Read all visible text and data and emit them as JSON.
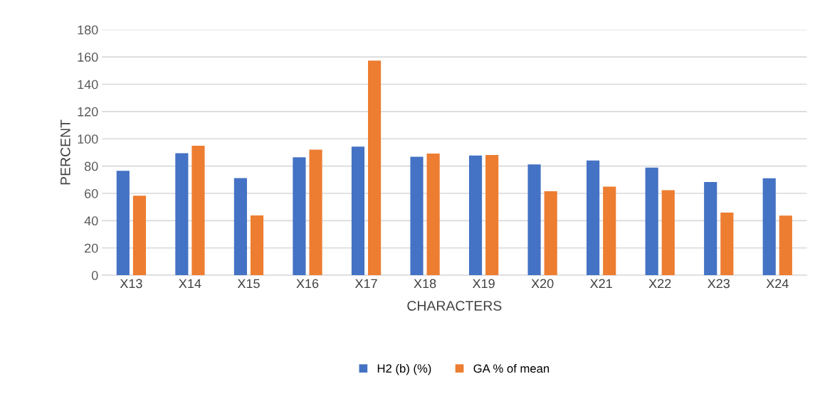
{
  "chart_data": {
    "type": "bar",
    "xlabel": "CHARACTERS",
    "ylabel": "PERCENT",
    "categories": [
      "X13",
      "X14",
      "X15",
      "X16",
      "X17",
      "X18",
      "X19",
      "X20",
      "X21",
      "X22",
      "X23",
      "X24"
    ],
    "series": [
      {
        "name": "H2 (b) (%)",
        "color": "#4472c4",
        "values": [
          76.6,
          89.5,
          71.2,
          86.5,
          94.3,
          86.9,
          87.7,
          81.3,
          84.1,
          78.9,
          68.3,
          71.1
        ]
      },
      {
        "name": "GA % of mean",
        "color": "#ed7d31",
        "values": [
          58.3,
          94.9,
          43.8,
          92,
          157.3,
          89.2,
          88.2,
          61.6,
          64.9,
          62.3,
          45.9,
          43.7
        ]
      }
    ],
    "ylim": [
      0,
      180
    ],
    "yticks": [
      0,
      20,
      40,
      60,
      80,
      100,
      120,
      140,
      160,
      180
    ],
    "grid": "y",
    "legend": "bottom"
  }
}
